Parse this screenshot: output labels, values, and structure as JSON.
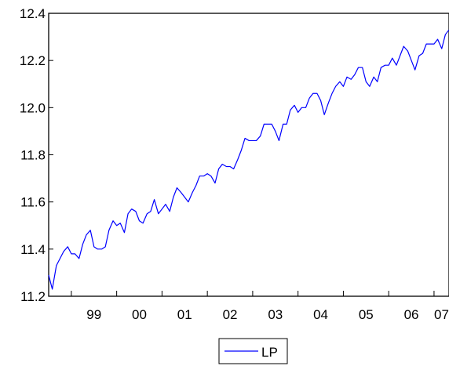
{
  "chart_data": {
    "type": "line",
    "title": "",
    "xlabel": "",
    "ylabel": "",
    "x_range": [
      1998.5,
      2007.33
    ],
    "ylim": [
      11.2,
      12.4
    ],
    "y_ticks": [
      "11.2",
      "11.4",
      "11.6",
      "11.8",
      "12.0",
      "12.2",
      "12.4"
    ],
    "x_ticks": [
      {
        "label": "99",
        "year": 1999
      },
      {
        "label": "00",
        "year": 2000
      },
      {
        "label": "01",
        "year": 2001
      },
      {
        "label": "02",
        "year": 2002
      },
      {
        "label": "03",
        "year": 2003
      },
      {
        "label": "04",
        "year": 2004
      },
      {
        "label": "05",
        "year": 2005
      },
      {
        "label": "06",
        "year": 2006
      },
      {
        "label": "07",
        "year": 2007
      }
    ],
    "grid": false,
    "legend_position": "bottom-center",
    "series": [
      {
        "name": "LP",
        "color": "#0000ff",
        "x": [
          1998.5,
          1998.58,
          1998.67,
          1998.75,
          1998.83,
          1998.92,
          1999.0,
          1999.08,
          1999.17,
          1999.25,
          1999.33,
          1999.42,
          1999.5,
          1999.58,
          1999.67,
          1999.75,
          1999.83,
          1999.92,
          2000.0,
          2000.08,
          2000.17,
          2000.25,
          2000.33,
          2000.42,
          2000.5,
          2000.58,
          2000.67,
          2000.75,
          2000.83,
          2000.92,
          2001.0,
          2001.08,
          2001.17,
          2001.25,
          2001.33,
          2001.42,
          2001.5,
          2001.58,
          2001.67,
          2001.75,
          2001.83,
          2001.92,
          2002.0,
          2002.08,
          2002.17,
          2002.25,
          2002.33,
          2002.42,
          2002.5,
          2002.58,
          2002.67,
          2002.75,
          2002.83,
          2002.92,
          2003.0,
          2003.08,
          2003.17,
          2003.25,
          2003.33,
          2003.42,
          2003.5,
          2003.58,
          2003.67,
          2003.75,
          2003.83,
          2003.92,
          2004.0,
          2004.08,
          2004.17,
          2004.25,
          2004.33,
          2004.42,
          2004.5,
          2004.58,
          2004.67,
          2004.75,
          2004.83,
          2004.92,
          2005.0,
          2005.08,
          2005.17,
          2005.25,
          2005.33,
          2005.42,
          2005.5,
          2005.58,
          2005.67,
          2005.75,
          2005.83,
          2005.92,
          2006.0,
          2006.08,
          2006.17,
          2006.25,
          2006.33,
          2006.42,
          2006.5,
          2006.58,
          2006.67,
          2006.75,
          2006.83,
          2006.92,
          2007.0,
          2007.08,
          2007.17,
          2007.25,
          2007.33
        ],
        "y": [
          11.29,
          11.23,
          11.33,
          11.36,
          11.39,
          11.41,
          11.38,
          11.38,
          11.36,
          11.42,
          11.46,
          11.48,
          11.41,
          11.4,
          11.4,
          11.41,
          11.48,
          11.52,
          11.5,
          11.51,
          11.47,
          11.55,
          11.57,
          11.56,
          11.52,
          11.51,
          11.55,
          11.56,
          11.61,
          11.55,
          11.57,
          11.59,
          11.56,
          11.62,
          11.66,
          11.64,
          11.62,
          11.6,
          11.64,
          11.67,
          11.71,
          11.71,
          11.72,
          11.71,
          11.68,
          11.74,
          11.76,
          11.75,
          11.75,
          11.74,
          11.78,
          11.82,
          11.87,
          11.86,
          11.86,
          11.86,
          11.88,
          11.93,
          11.93,
          11.93,
          11.9,
          11.86,
          11.93,
          11.93,
          11.99,
          12.01,
          11.98,
          12.0,
          12.0,
          12.04,
          12.06,
          12.06,
          12.03,
          11.97,
          12.02,
          12.06,
          12.09,
          12.11,
          12.09,
          12.13,
          12.12,
          12.14,
          12.17,
          12.17,
          12.11,
          12.09,
          12.13,
          12.11,
          12.17,
          12.18,
          12.18,
          12.21,
          12.18,
          12.22,
          12.26,
          12.24,
          12.2,
          12.16,
          12.22,
          12.23,
          12.27,
          12.27,
          12.27,
          12.29,
          12.25,
          12.31,
          12.33
        ]
      }
    ]
  }
}
